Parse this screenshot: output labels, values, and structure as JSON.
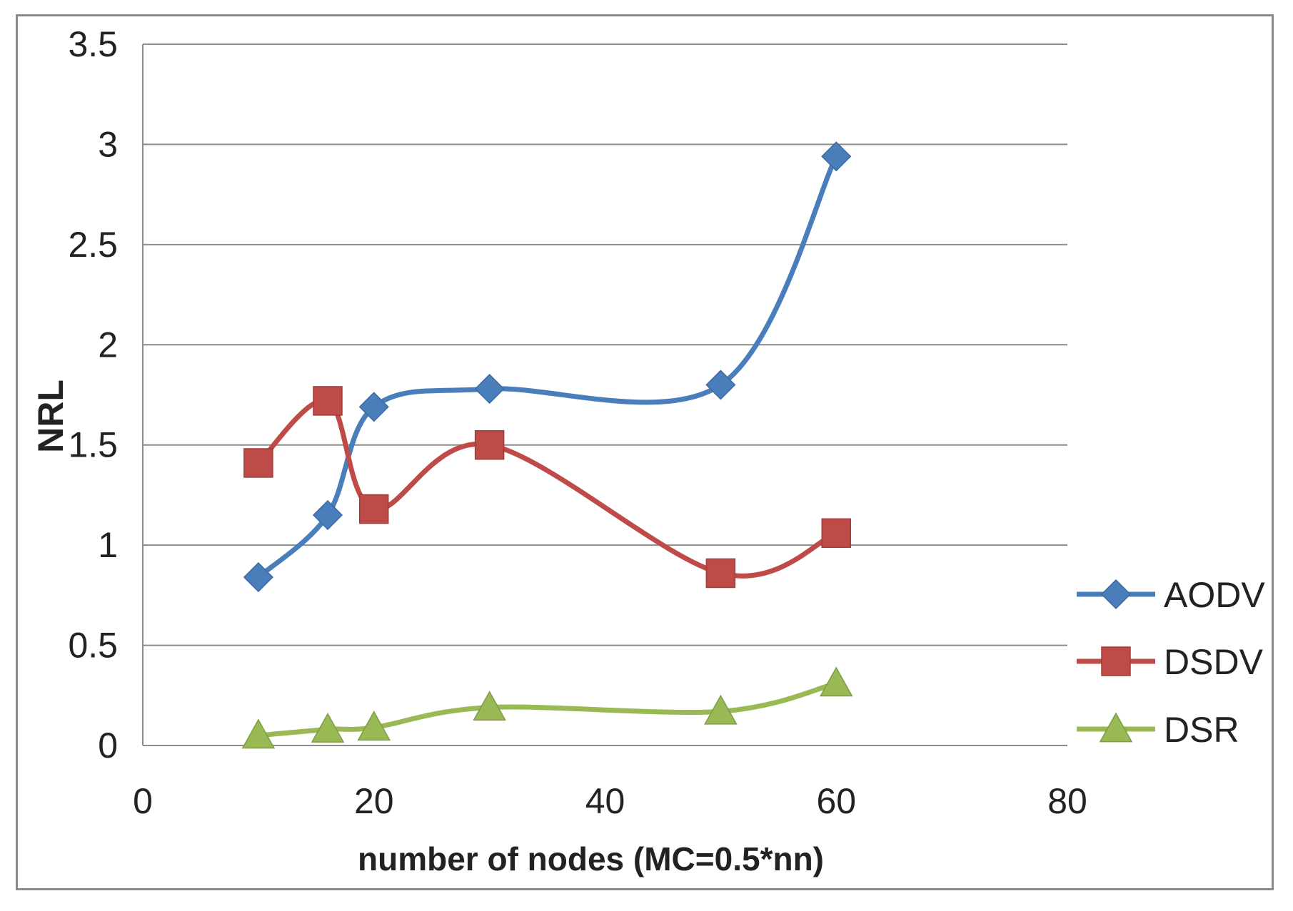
{
  "chart_data": {
    "type": "line",
    "title": "",
    "xlabel": "number of nodes (MC=0.5*nn)",
    "ylabel": "NRL",
    "xlim": [
      0,
      80
    ],
    "ylim": [
      0,
      3.5
    ],
    "xticks": [
      0,
      20,
      40,
      60,
      80
    ],
    "yticks": [
      0,
      0.5,
      1,
      1.5,
      2,
      2.5,
      3,
      3.5
    ],
    "xtick_labels": [
      "0",
      "20",
      "40",
      "60",
      "80"
    ],
    "ytick_labels": [
      "0",
      "0.5",
      "1",
      "1.5",
      "2",
      "2.5",
      "3",
      "3.5"
    ],
    "grid": "horizontal",
    "smooth": true,
    "legend_position": "right",
    "series": [
      {
        "name": "AODV",
        "color": "#4a7ebb",
        "marker": "diamond",
        "x": [
          10,
          16,
          20,
          30,
          50,
          60
        ],
        "y": [
          0.84,
          1.15,
          1.69,
          1.78,
          1.8,
          2.94
        ]
      },
      {
        "name": "DSDV",
        "color": "#be4b48",
        "marker": "square",
        "x": [
          10,
          16,
          20,
          30,
          50,
          60
        ],
        "y": [
          1.41,
          1.72,
          1.18,
          1.5,
          0.86,
          1.06
        ]
      },
      {
        "name": "DSR",
        "color": "#98b954",
        "marker": "triangle",
        "x": [
          10,
          16,
          20,
          30,
          50,
          60
        ],
        "y": [
          0.05,
          0.08,
          0.09,
          0.19,
          0.17,
          0.31
        ]
      }
    ]
  }
}
